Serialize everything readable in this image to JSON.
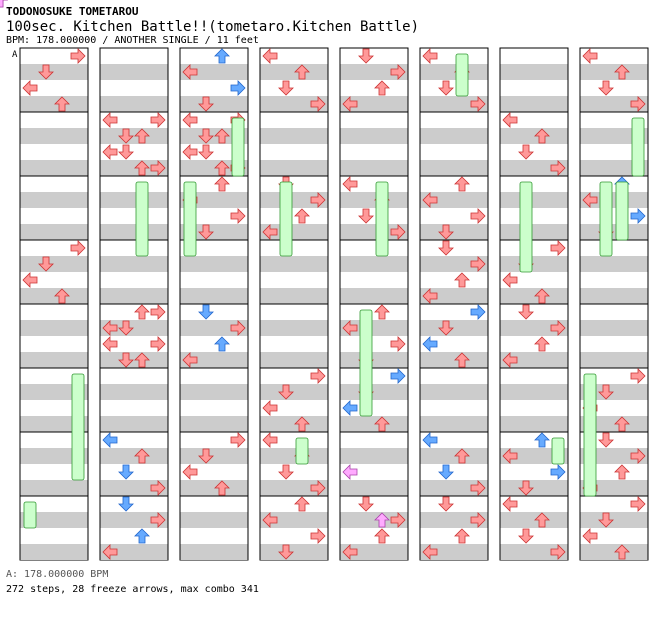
{
  "header": {
    "artist": "TODONOSUKE TOMETAROU",
    "title": "100sec. Kitchen Battle!!(tometaro.Kitchen Battle)",
    "info": "BPM: 178.000000 / ANOTHER SINGLE / 11 feet"
  },
  "marker": "A",
  "footer": {
    "bpm_line": "A: 178.000000 BPM",
    "stats": "272 steps, 28 freeze arrows, max combo 341"
  },
  "colors": {
    "red_arrow": "#ff9999",
    "blue_arrow": "#66aaff",
    "pink_arrow": "#ffaaff",
    "freeze": "#ccffcc",
    "stripe": "#cccccc"
  },
  "chart_data": {
    "type": "step-chart",
    "columns": 8,
    "measures_per_column": 8,
    "lanes": [
      "left",
      "down",
      "up",
      "right"
    ],
    "notes": [
      [
        0,
        0,
        3,
        "r"
      ],
      [
        0,
        3,
        3,
        "r"
      ],
      [
        1,
        1,
        0,
        "r"
      ],
      [
        1,
        1,
        3,
        "r"
      ],
      [
        1,
        6,
        0,
        "b"
      ],
      [
        1,
        4,
        2,
        "r"
      ],
      [
        1,
        4,
        3,
        "r"
      ],
      [
        1,
        7,
        1,
        "b"
      ],
      [
        2,
        1,
        0,
        "r"
      ],
      [
        2,
        0,
        2,
        "b"
      ],
      [
        2,
        1,
        3,
        "r"
      ],
      [
        2,
        4,
        1,
        "b"
      ],
      [
        2,
        2,
        2,
        "r"
      ],
      [
        2,
        6,
        3,
        "r"
      ],
      [
        3,
        0,
        0,
        "r"
      ],
      [
        3,
        2,
        1,
        "r"
      ],
      [
        3,
        6,
        0,
        "r"
      ],
      [
        3,
        5,
        3,
        "r"
      ],
      [
        3,
        7,
        2,
        "r"
      ],
      [
        4,
        0,
        1,
        "r"
      ],
      [
        4,
        2,
        0,
        "r"
      ],
      [
        4,
        4,
        2,
        "r"
      ],
      [
        4,
        5,
        3,
        "b"
      ],
      [
        4,
        7,
        1,
        "r"
      ],
      [
        5,
        0,
        0,
        "r"
      ],
      [
        5,
        2,
        2,
        "r"
      ],
      [
        5,
        3,
        1,
        "r"
      ],
      [
        5,
        4,
        3,
        "b"
      ],
      [
        5,
        6,
        0,
        "b"
      ],
      [
        5,
        7,
        1,
        "r"
      ],
      [
        6,
        1,
        0,
        "r"
      ],
      [
        6,
        3,
        3,
        "r"
      ],
      [
        6,
        4,
        1,
        "r"
      ],
      [
        6,
        6,
        2,
        "b"
      ],
      [
        6,
        7,
        0,
        "r"
      ],
      [
        7,
        0,
        0,
        "r"
      ],
      [
        7,
        2,
        2,
        "b"
      ],
      [
        7,
        5,
        3,
        "r"
      ],
      [
        7,
        6,
        1,
        "r"
      ],
      [
        7,
        7,
        3,
        "r"
      ]
    ],
    "freezes": [
      [
        0,
        0,
        7,
        1
      ],
      [
        0,
        3,
        5,
        6
      ],
      [
        1,
        2,
        2,
        4
      ],
      [
        2,
        0,
        2,
        4
      ],
      [
        2,
        3,
        1,
        3
      ],
      [
        3,
        1,
        2,
        4
      ],
      [
        3,
        2,
        6,
        0
      ],
      [
        4,
        1,
        4,
        6
      ],
      [
        4,
        2,
        2,
        4
      ],
      [
        5,
        2,
        0,
        2
      ],
      [
        6,
        3,
        6,
        0
      ],
      [
        6,
        1,
        2,
        5
      ],
      [
        7,
        2,
        2,
        3
      ],
      [
        7,
        0,
        5,
        7
      ],
      [
        7,
        3,
        1,
        3
      ],
      [
        7,
        1,
        2,
        4
      ]
    ],
    "pink_notes": [
      [
        4,
        6,
        0,
        2
      ],
      [
        4,
        6,
        2,
        5
      ],
      [
        4,
        6,
        4,
        2
      ],
      [
        4,
        6,
        6,
        1
      ]
    ]
  }
}
